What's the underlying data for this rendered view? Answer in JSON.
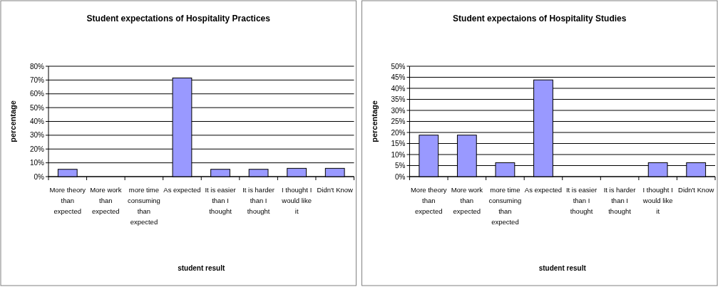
{
  "chart_data": [
    {
      "type": "bar",
      "title": "Student expectations of Hospitality Practices",
      "xlabel": "student result",
      "ylabel": "percentage",
      "categories": [
        "More theory than expected",
        "More work than expected",
        "more time consuming than expected",
        "As expected",
        "It is easier than I thought",
        "It is harder than I thought",
        "I thought I would like it",
        "Didn't Know"
      ],
      "values": [
        5.3,
        0,
        0,
        71.5,
        5.3,
        5.3,
        6,
        6
      ],
      "color": "#9999ff",
      "ylim": [
        0,
        80
      ],
      "yticks": [
        {
          "value": 0,
          "label": "0%"
        },
        {
          "value": 10,
          "label": "10%"
        },
        {
          "value": 20,
          "label": "20%"
        },
        {
          "value": 30,
          "label": "30%"
        },
        {
          "value": 40,
          "label": "40%"
        },
        {
          "value": 50,
          "label": "50%"
        },
        {
          "value": 60,
          "label": "60%"
        },
        {
          "value": 70,
          "label": "70%"
        },
        {
          "value": 80,
          "label": "80%"
        }
      ],
      "grid": "y"
    },
    {
      "type": "bar",
      "title": "Student expectaions of Hospitality Studies",
      "xlabel": "student result",
      "ylabel": "percentage",
      "categories": [
        "More theory than expected",
        "More work than expected",
        "more time consuming than expected",
        "As expected",
        "It is easier than I thought",
        "It is harder than I thought",
        "I thought I would like it",
        "Didn't Know"
      ],
      "values": [
        18.8,
        18.8,
        6.3,
        43.8,
        0,
        0,
        6.3,
        6.3
      ],
      "color": "#9999ff",
      "ylim": [
        0,
        50
      ],
      "yticks": [
        {
          "value": 0,
          "label": "0%"
        },
        {
          "value": 5,
          "label": "5%"
        },
        {
          "value": 10,
          "label": "10%"
        },
        {
          "value": 15,
          "label": "15%"
        },
        {
          "value": 20,
          "label": "20%"
        },
        {
          "value": 25,
          "label": "25%"
        },
        {
          "value": 30,
          "label": "30%"
        },
        {
          "value": 35,
          "label": "35%"
        },
        {
          "value": 40,
          "label": "40%"
        },
        {
          "value": 45,
          "label": "45%"
        },
        {
          "value": 50,
          "label": "50%"
        }
      ],
      "grid": "y"
    }
  ]
}
